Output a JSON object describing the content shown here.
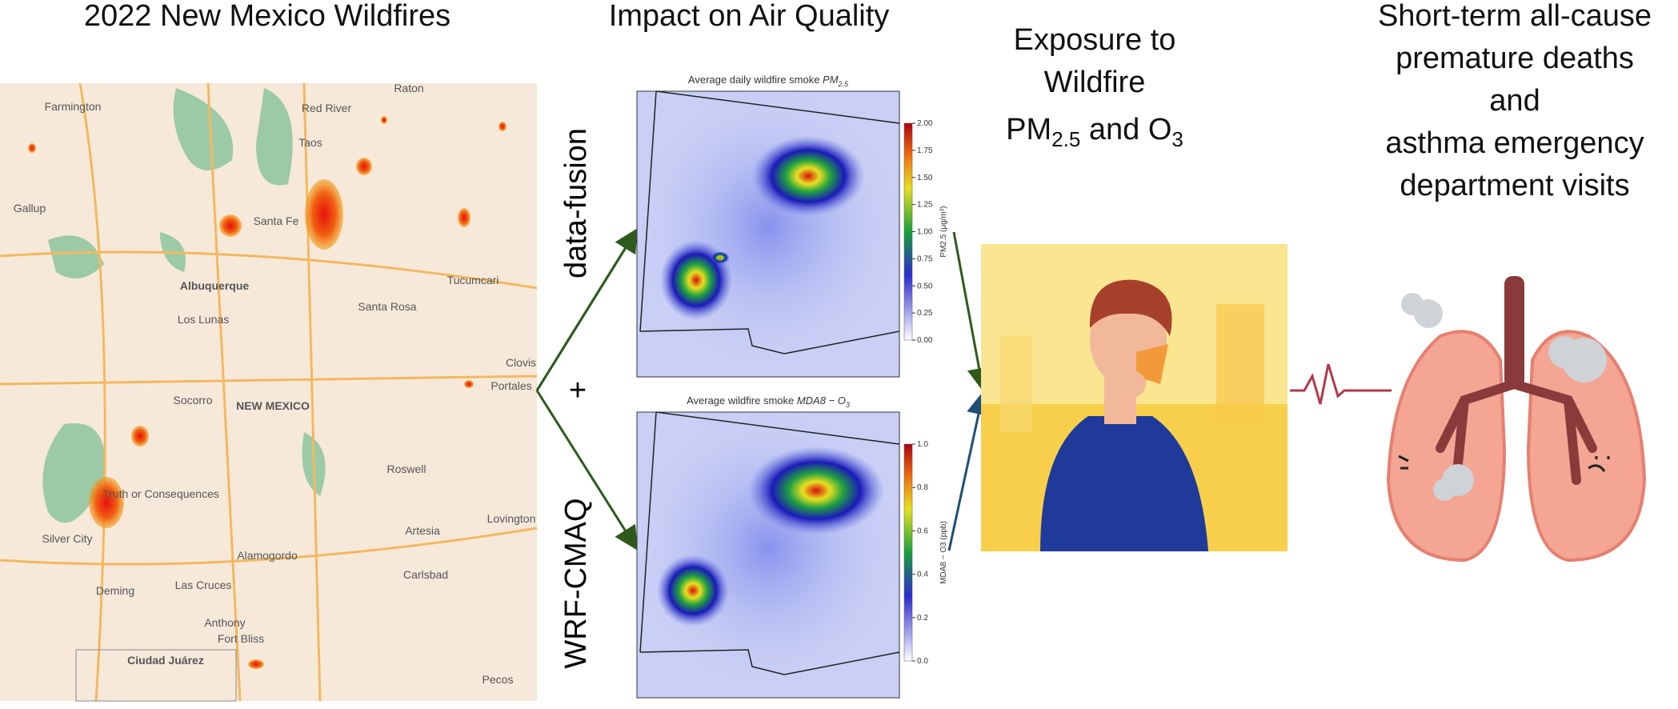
{
  "headers": {
    "wildfires": "2022 New Mexico Wildfires",
    "air_quality": "Impact on Air Quality",
    "exposure": {
      "lines": [
        "Exposure to",
        "Wildfire"
      ],
      "pm": "PM",
      "pm_sub": "2.5",
      "and_o": " and O",
      "o_sub": "3"
    },
    "outcomes": [
      "Short-term all-cause",
      "premature deaths",
      "and",
      "asthma emergency",
      "department visits"
    ]
  },
  "methods": {
    "top": "data-fusion",
    "plus": "+",
    "bottom": "WRF-CMAQ"
  },
  "panels": [
    {
      "title": "Average daily wildfire smoke ",
      "title_var": "PM",
      "title_sub": "2.5",
      "colorbar_label": "PM2.5 (μg/m³)",
      "ticks": [
        "0.00",
        "0.25",
        "0.50",
        "0.75",
        "1.00",
        "1.25",
        "1.50",
        "1.75",
        "2.00"
      ]
    },
    {
      "title": "Average wildfire smoke ",
      "title_var": "MDA8 − O",
      "title_sub": "3",
      "colorbar_label": "MDA8 − O3 (ppb)",
      "ticks": [
        "0.0",
        "0.2",
        "0.4",
        "0.6",
        "0.8",
        "1.0"
      ]
    }
  ],
  "map": {
    "labels": [
      "Farmington",
      "Raton",
      "Red River",
      "Taos",
      "Santa Fe",
      "Albuquerque",
      "Los Lunas",
      "Gallup",
      "Santa Rosa",
      "Tucumcari",
      "Clovis",
      "Portales",
      "Socorro",
      "NEW MEXICO",
      "Truth or Consequences",
      "Roswell",
      "Alamogordo",
      "Artesia",
      "Silver City",
      "Deming",
      "Las Cruces",
      "Carlsbad",
      "Lovington",
      "Anthony",
      "Fort Bliss",
      "Ciudad Juárez",
      "Pecos"
    ]
  }
}
